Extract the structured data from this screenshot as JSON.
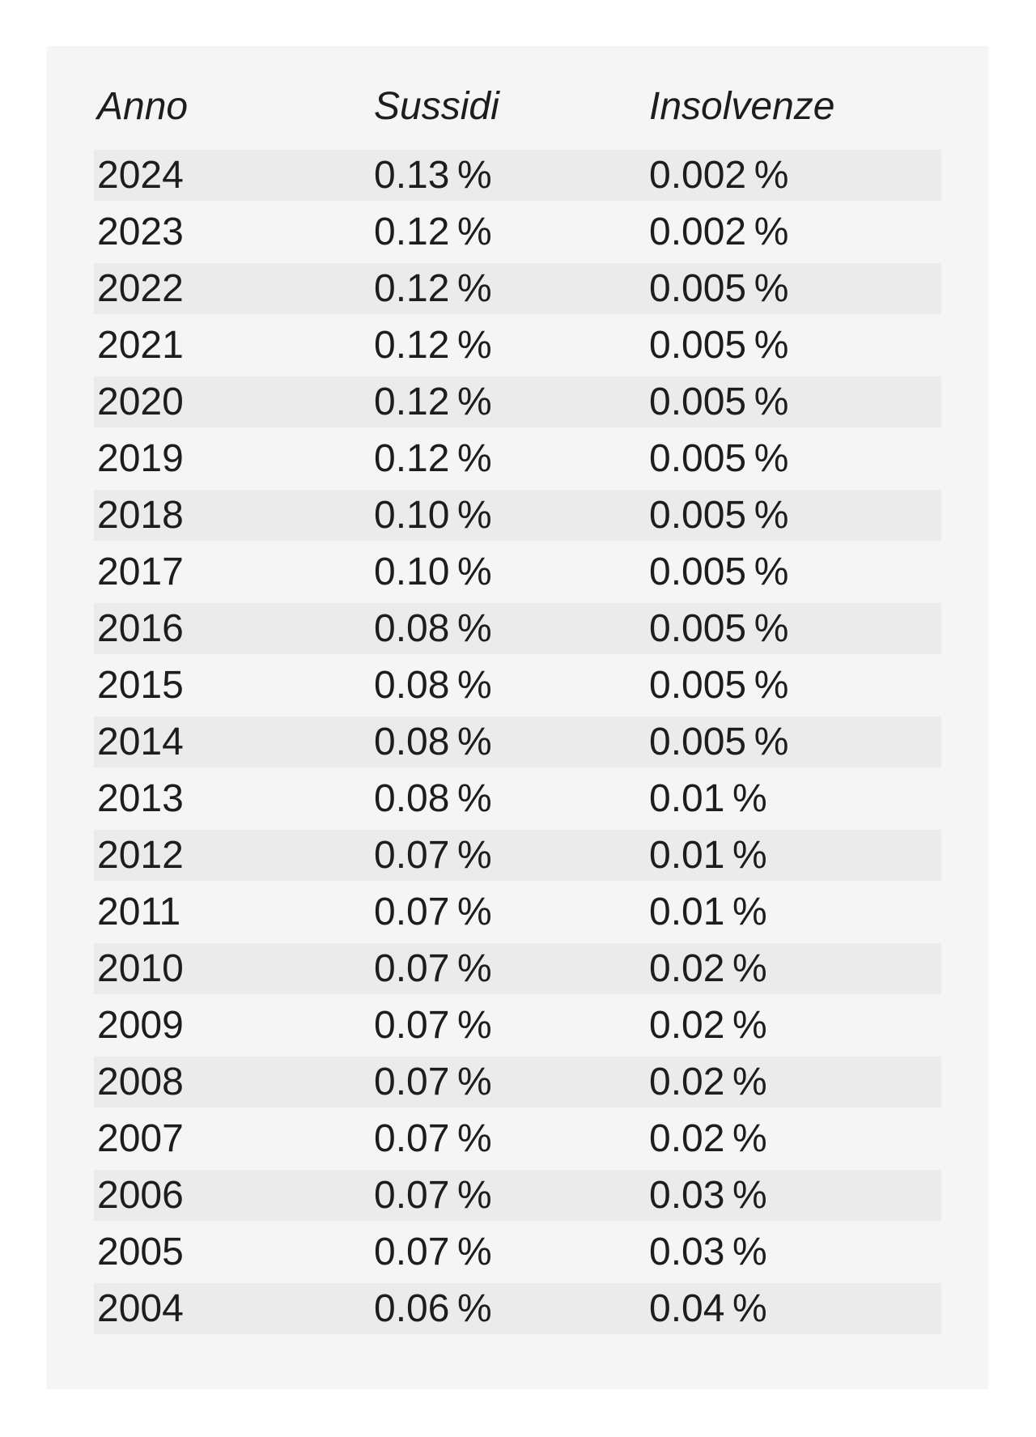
{
  "colors": {
    "page_bg": "#ffffff",
    "card_bg": "#f4f5f4",
    "row_stripe": "#ebebec",
    "text": "#1d1d1d"
  },
  "table": {
    "columns": [
      {
        "label": "Anno"
      },
      {
        "label": "Sussidi"
      },
      {
        "label": "Insolvenze"
      }
    ],
    "rows": [
      {
        "anno": "2024",
        "sussidi": "0.13 %",
        "insolvenze": "0.002 %"
      },
      {
        "anno": "2023",
        "sussidi": "0.12 %",
        "insolvenze": "0.002 %"
      },
      {
        "anno": "2022",
        "sussidi": "0.12 %",
        "insolvenze": "0.005 %"
      },
      {
        "anno": "2021",
        "sussidi": "0.12 %",
        "insolvenze": "0.005 %"
      },
      {
        "anno": "2020",
        "sussidi": "0.12 %",
        "insolvenze": "0.005 %"
      },
      {
        "anno": "2019",
        "sussidi": "0.12 %",
        "insolvenze": "0.005 %"
      },
      {
        "anno": "2018",
        "sussidi": "0.10 %",
        "insolvenze": "0.005 %"
      },
      {
        "anno": "2017",
        "sussidi": "0.10 %",
        "insolvenze": "0.005 %"
      },
      {
        "anno": "2016",
        "sussidi": "0.08 %",
        "insolvenze": "0.005 %"
      },
      {
        "anno": "2015",
        "sussidi": "0.08 %",
        "insolvenze": "0.005 %"
      },
      {
        "anno": "2014",
        "sussidi": "0.08 %",
        "insolvenze": "0.005 %"
      },
      {
        "anno": "2013",
        "sussidi": "0.08 %",
        "insolvenze": "0.01 %"
      },
      {
        "anno": "2012",
        "sussidi": "0.07 %",
        "insolvenze": "0.01 %"
      },
      {
        "anno": "2011",
        "sussidi": "0.07 %",
        "insolvenze": "0.01 %"
      },
      {
        "anno": "2010",
        "sussidi": "0.07 %",
        "insolvenze": "0.02 %"
      },
      {
        "anno": "2009",
        "sussidi": "0.07 %",
        "insolvenze": "0.02 %"
      },
      {
        "anno": "2008",
        "sussidi": "0.07 %",
        "insolvenze": "0.02 %"
      },
      {
        "anno": "2007",
        "sussidi": "0.07 %",
        "insolvenze": "0.02 %"
      },
      {
        "anno": "2006",
        "sussidi": "0.07 %",
        "insolvenze": "0.03 %"
      },
      {
        "anno": "2005",
        "sussidi": "0.07 %",
        "insolvenze": "0.03 %"
      },
      {
        "anno": "2004",
        "sussidi": "0.06 %",
        "insolvenze": "0.04 %"
      }
    ]
  },
  "chart_data": {
    "type": "table",
    "title": "",
    "columns": [
      "Anno",
      "Sussidi",
      "Insolvenze"
    ],
    "categories": [
      "2024",
      "2023",
      "2022",
      "2021",
      "2020",
      "2019",
      "2018",
      "2017",
      "2016",
      "2015",
      "2014",
      "2013",
      "2012",
      "2011",
      "2010",
      "2009",
      "2008",
      "2007",
      "2006",
      "2005",
      "2004"
    ],
    "series": [
      {
        "name": "Sussidi",
        "unit": "%",
        "values": [
          0.13,
          0.12,
          0.12,
          0.12,
          0.12,
          0.12,
          0.1,
          0.1,
          0.08,
          0.08,
          0.08,
          0.08,
          0.07,
          0.07,
          0.07,
          0.07,
          0.07,
          0.07,
          0.07,
          0.07,
          0.06
        ]
      },
      {
        "name": "Insolvenze",
        "unit": "%",
        "values": [
          0.002,
          0.002,
          0.005,
          0.005,
          0.005,
          0.005,
          0.005,
          0.005,
          0.005,
          0.005,
          0.005,
          0.01,
          0.01,
          0.01,
          0.02,
          0.02,
          0.02,
          0.02,
          0.03,
          0.03,
          0.04
        ]
      }
    ],
    "layout": {
      "striped_rows": true,
      "header_style": "italic"
    }
  }
}
